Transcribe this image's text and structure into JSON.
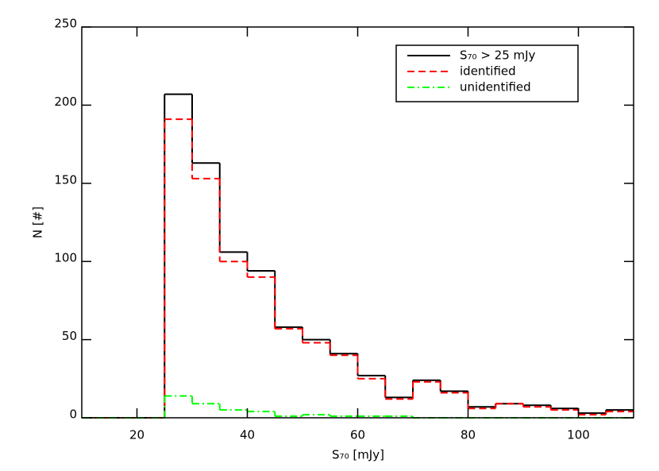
{
  "chart_data": {
    "type": "step-histogram",
    "x_label": "S₇₀ [mJy]",
    "y_label": "N [#]",
    "bins": [
      10,
      15,
      20,
      25,
      30,
      35,
      40,
      45,
      50,
      55,
      60,
      65,
      70,
      75,
      80,
      85,
      90,
      95,
      100,
      105,
      110
    ],
    "series": [
      {
        "name": "S₇₀ > 25 mJy",
        "color": "#000000",
        "linestyle": "solid",
        "values": [
          0,
          0,
          0,
          207,
          163,
          106,
          94,
          58,
          50,
          41,
          27,
          13,
          24,
          17,
          7,
          9,
          8,
          6,
          3,
          5
        ]
      },
      {
        "name": "identified",
        "color": "#ff0000",
        "linestyle": "dashed",
        "values": [
          0,
          0,
          0,
          191,
          153,
          100,
          90,
          57,
          48,
          40,
          25,
          12,
          23,
          16,
          6,
          9,
          7,
          5,
          2,
          4
        ]
      },
      {
        "name": "unidentified",
        "color": "#00ff00",
        "linestyle": "dashdot",
        "values": [
          0,
          0,
          0,
          14,
          9,
          5,
          4,
          1,
          2,
          1,
          1,
          1,
          0,
          0,
          0,
          0,
          0,
          0,
          0,
          0
        ]
      }
    ],
    "xlim": [
      10,
      110
    ],
    "xticks": [
      20,
      40,
      60,
      80,
      100
    ],
    "ylim": [
      0,
      250
    ],
    "yticks": [
      0,
      50,
      100,
      150,
      200,
      250
    ],
    "legend": "upper-right"
  }
}
